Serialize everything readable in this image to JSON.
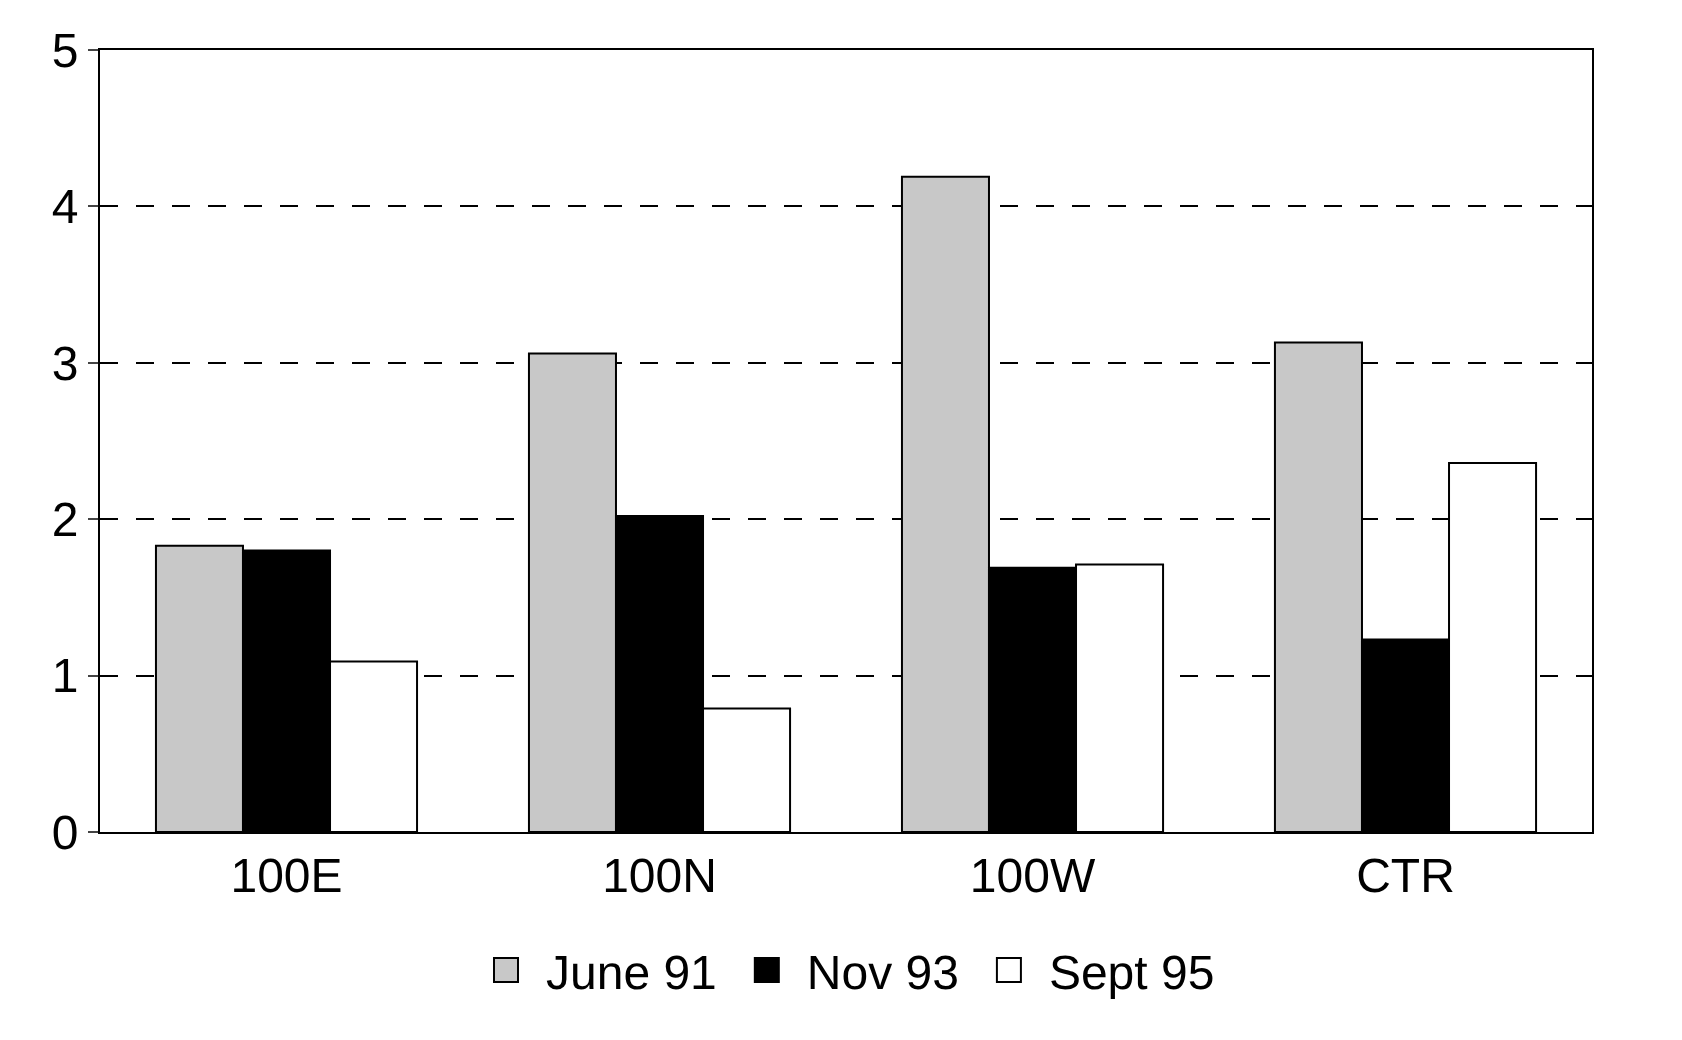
{
  "chart_data": {
    "type": "bar",
    "categories": [
      "100E",
      "100N",
      "100W",
      "CTR"
    ],
    "series": [
      {
        "name": "June 91",
        "color": "#c8c8c8",
        "values": [
          1.83,
          3.06,
          4.19,
          3.13
        ]
      },
      {
        "name": "Nov 93",
        "color": "#000000",
        "values": [
          1.8,
          2.02,
          1.69,
          1.23
        ]
      },
      {
        "name": "Sept 95",
        "color": "#ffffff",
        "values": [
          1.09,
          0.79,
          1.71,
          2.36
        ]
      }
    ],
    "ylim": [
      0,
      5
    ],
    "yticks": [
      0,
      1,
      2,
      3,
      4,
      5
    ],
    "grid": "y",
    "legend": "bottom"
  }
}
